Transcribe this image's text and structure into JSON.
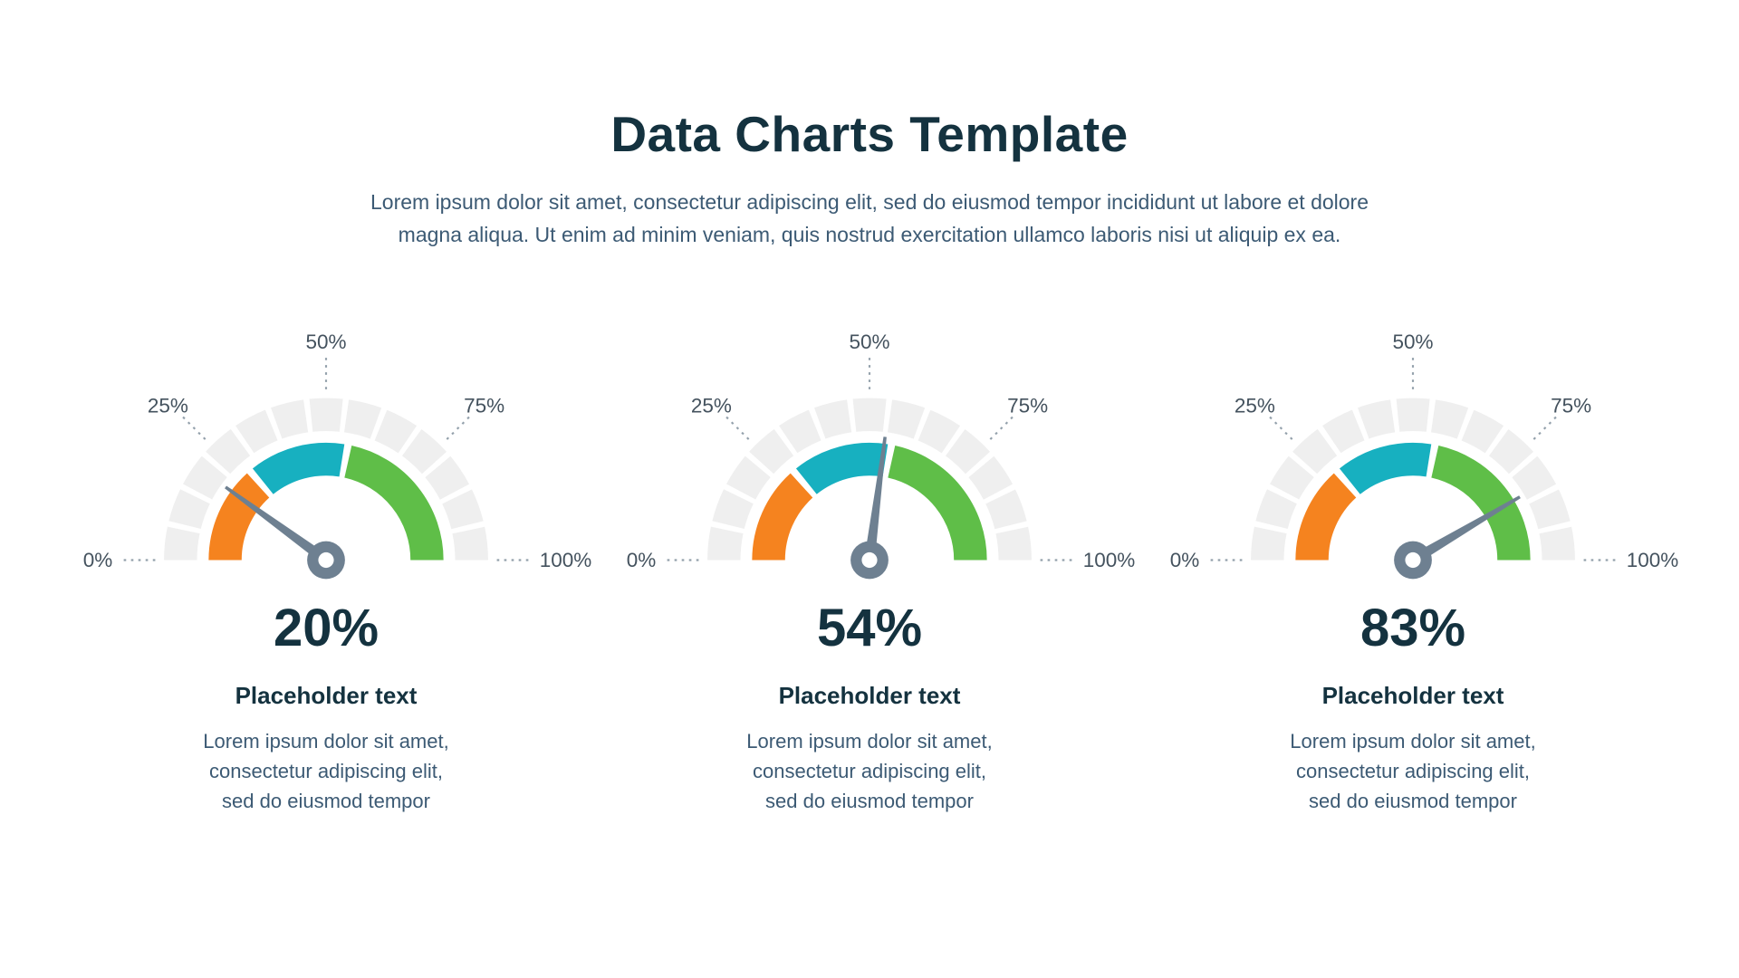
{
  "page": {
    "title": "Data Charts Template",
    "subtitle": "Lorem ipsum dolor sit amet, consectetur adipiscing elit, sed do eiusmod tempor incididunt ut labore et dolore\nmagna aliqua. Ut enim ad minim veniam, quis nostrud exercitation ullamco laboris nisi ut aliquip ex ea."
  },
  "colors": {
    "navy": "#14323F",
    "slate": "#3C5A74",
    "track": "#EFEFEF",
    "needle": "#6E8091",
    "tick_line": "#93A0AB",
    "tick_label": "#44525E"
  },
  "chart_data": [
    {
      "type": "gauge",
      "value": 20,
      "label": "20%",
      "title": "Placeholder text",
      "description": "Lorem ipsum dolor sit amet,\nconsectetur adipiscing elit,\nsed do eiusmod tempor",
      "range": [
        0,
        100
      ],
      "ticks": [
        "0%",
        "25%",
        "50%",
        "75%",
        "100%"
      ],
      "segments": [
        {
          "color": "#F5831F",
          "from": 0,
          "to": 26.5
        },
        {
          "color": "#17B0C0",
          "from": 28.5,
          "to": 55
        },
        {
          "color": "#5FBE48",
          "from": 57,
          "to": 100
        }
      ]
    },
    {
      "type": "gauge",
      "value": 54,
      "label": "54%",
      "title": "Placeholder text",
      "description": "Lorem ipsum dolor sit amet,\nconsectetur adipiscing elit,\nsed do eiusmod tempor",
      "range": [
        0,
        100
      ],
      "ticks": [
        "0%",
        "25%",
        "50%",
        "75%",
        "100%"
      ],
      "segments": [
        {
          "color": "#F5831F",
          "from": 0,
          "to": 26.5
        },
        {
          "color": "#17B0C0",
          "from": 28.5,
          "to": 55
        },
        {
          "color": "#5FBE48",
          "from": 57,
          "to": 100
        }
      ]
    },
    {
      "type": "gauge",
      "value": 83,
      "label": "83%",
      "title": "Placeholder text",
      "description": "Lorem ipsum dolor sit amet,\nconsectetur adipiscing elit,\nsed do eiusmod tempor",
      "range": [
        0,
        100
      ],
      "ticks": [
        "0%",
        "25%",
        "50%",
        "75%",
        "100%"
      ],
      "segments": [
        {
          "color": "#F5831F",
          "from": 0,
          "to": 26.5
        },
        {
          "color": "#17B0C0",
          "from": 28.5,
          "to": 55
        },
        {
          "color": "#5FBE48",
          "from": 57,
          "to": 100
        }
      ]
    }
  ]
}
